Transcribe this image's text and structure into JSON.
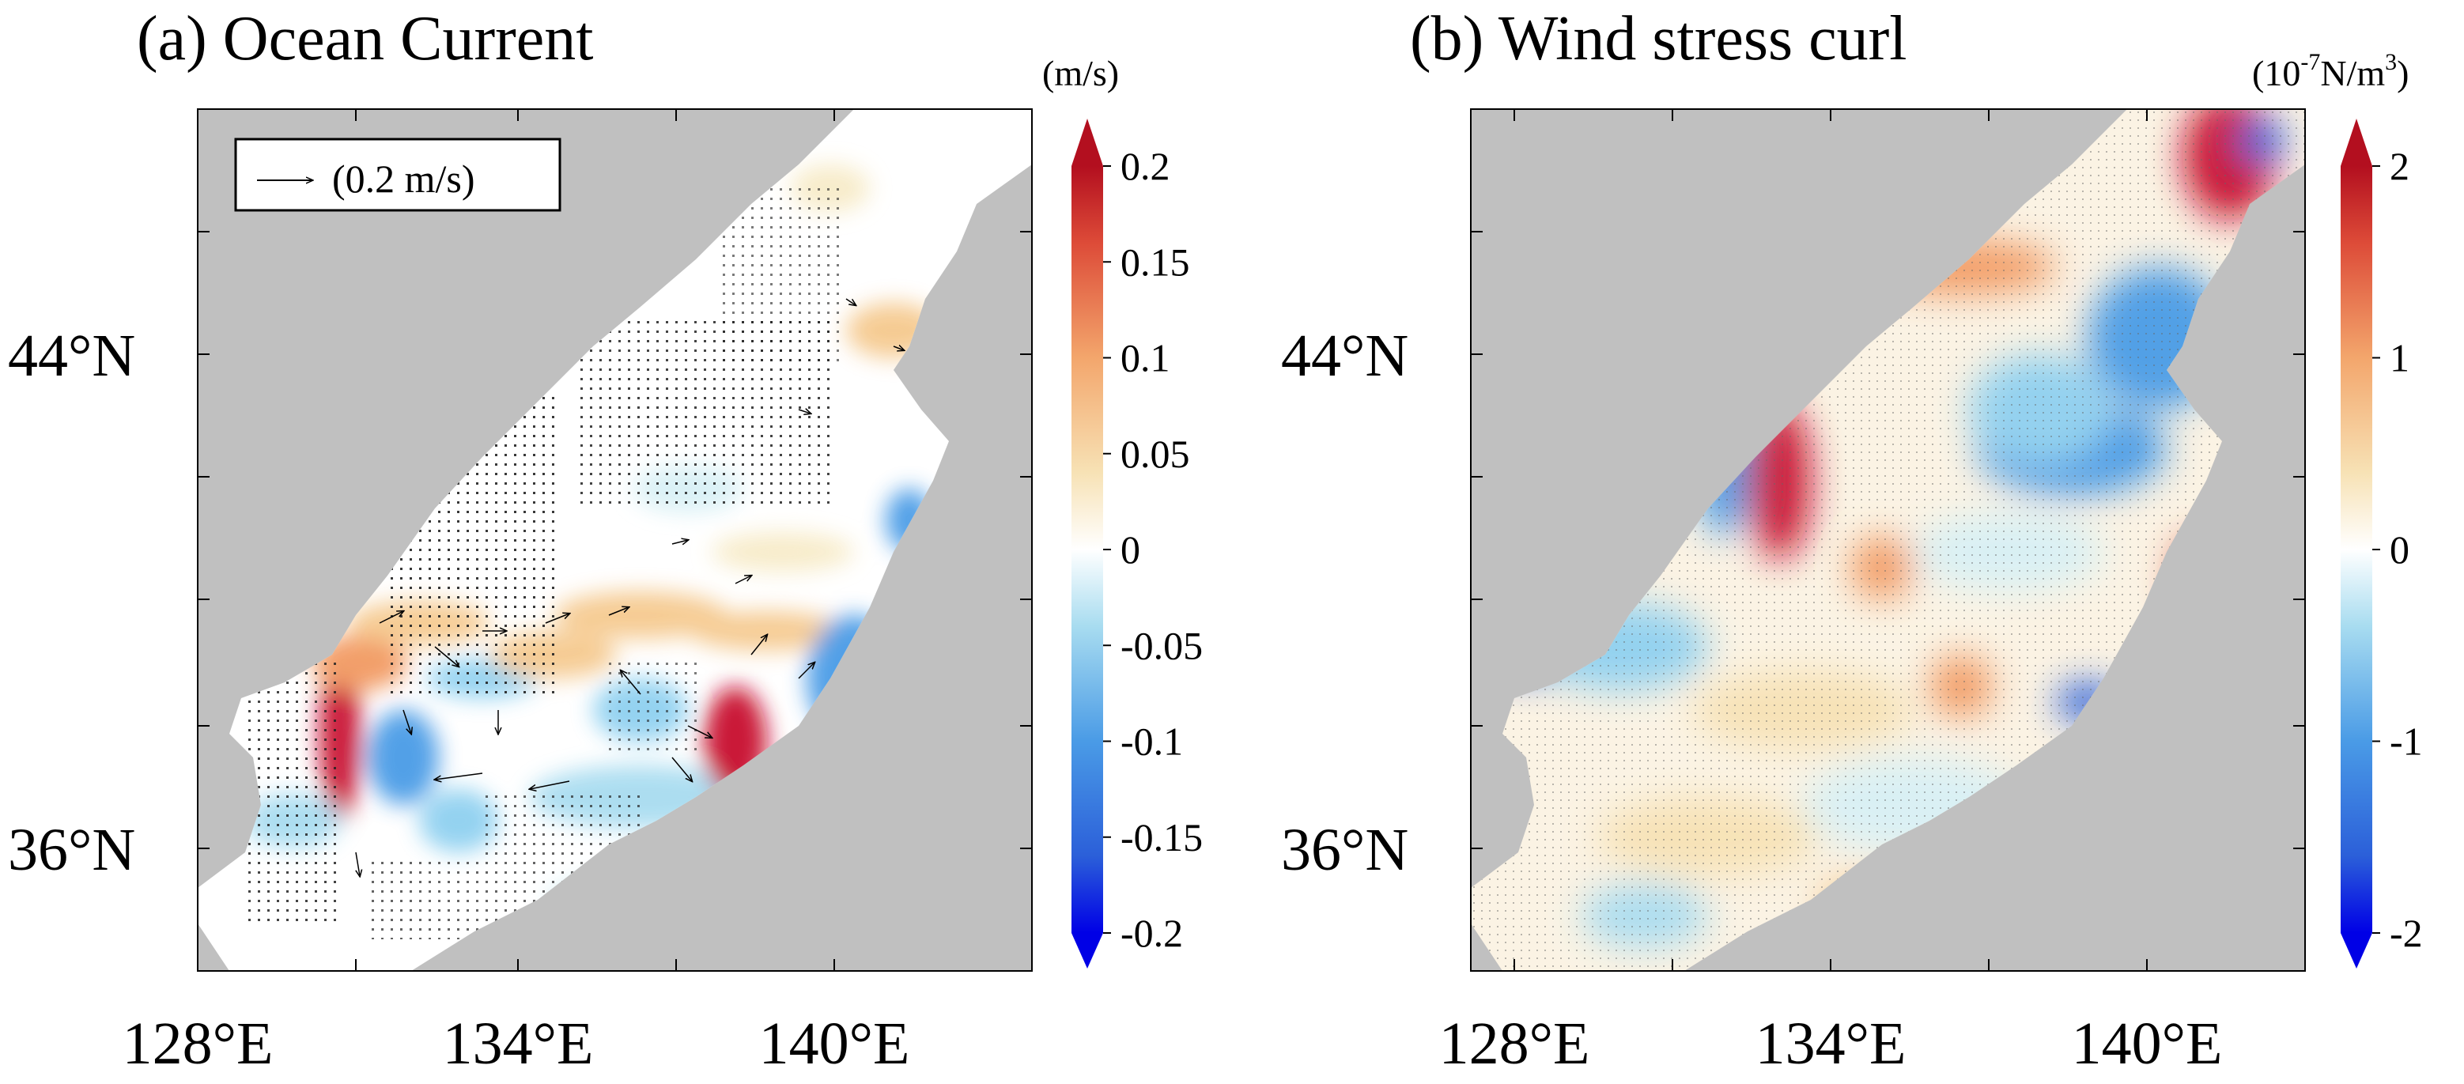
{
  "panels": [
    {
      "id": "a",
      "title": "(a) Ocean Current",
      "units": "(m/s)",
      "reference_arrow_label": "(0.2 m/s)",
      "xticks": [
        "128°E",
        "134°E",
        "140°E"
      ],
      "yticks": [
        "44°N",
        "36°N"
      ],
      "colorbar_ticks": [
        "0.2",
        "0.15",
        "0.1",
        "0.05",
        "0",
        "-0.05",
        "-0.1",
        "-0.15",
        "-0.2"
      ],
      "colorbar_range": [
        -0.2,
        0.2
      ]
    },
    {
      "id": "b",
      "title": "(b) Wind stress curl",
      "units_prefix": "(10",
      "units_exp1": "-7",
      "units_mid": "N/m",
      "units_exp2": "3",
      "units_suffix": ")",
      "xticks": [
        "128°E",
        "134°E",
        "140°E"
      ],
      "yticks": [
        "44°N",
        "36°N"
      ],
      "colorbar_ticks": [
        "2",
        "1",
        "0",
        "-1",
        "-2"
      ],
      "colorbar_range": [
        -2,
        2
      ]
    }
  ],
  "colors": {
    "land": "#c0c0c0",
    "sea_neutral": "#ffffff",
    "positive": "#d7191c",
    "negative": "#2c7bb6",
    "colormap": [
      "#0000e6",
      "#2b5fd9",
      "#4a9be6",
      "#8fd0f0",
      "#d8f0f5",
      "#ffffff",
      "#f7ebc8",
      "#f5c98e",
      "#f29a62",
      "#e0533d",
      "#b30f1f"
    ]
  }
}
